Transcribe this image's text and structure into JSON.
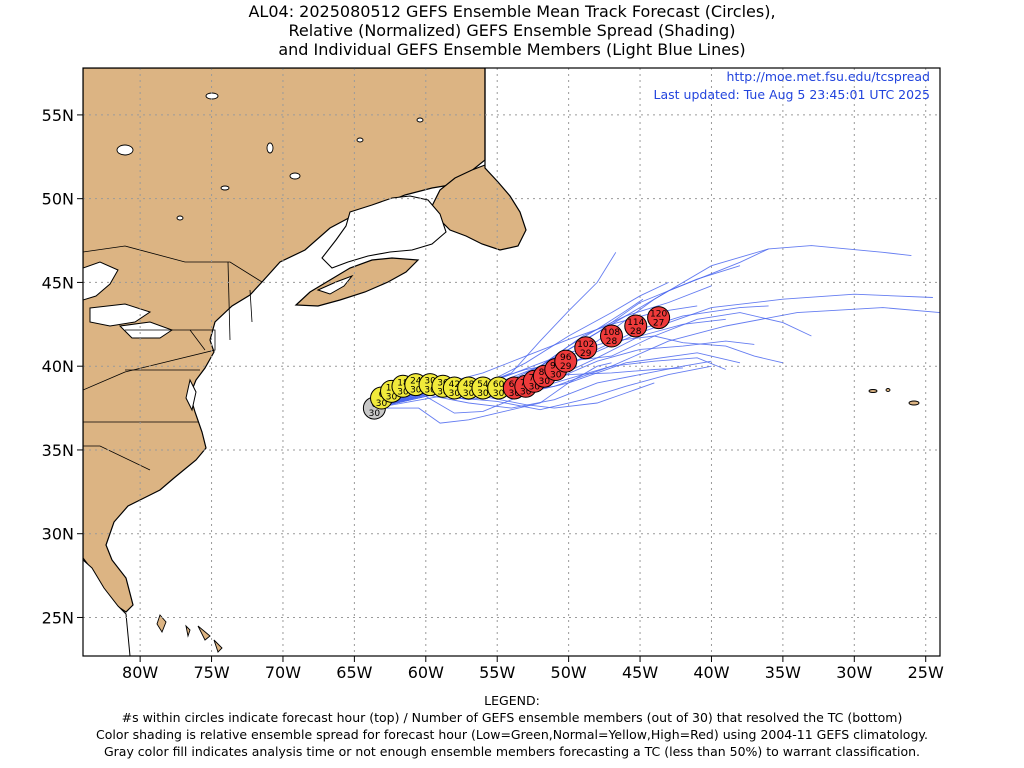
{
  "title": {
    "line1": "AL04: 2025080512 GEFS Ensemble Mean Track Forecast (Circles),",
    "line2": "Relative (Normalized) GEFS Ensemble Spread (Shading)",
    "line3": "and Individual GEFS Ensemble Members (Light Blue Lines)"
  },
  "source": {
    "url": "http://moe.met.fsu.edu/tcspread",
    "updated": "Last updated: Tue Aug 5 23:45:01 UTC 2025"
  },
  "axes": {
    "lon_range": [
      -84,
      -24
    ],
    "lat_range": [
      22.7,
      57.8
    ],
    "x_ticks": [
      {
        "lon": -80,
        "label": "80W"
      },
      {
        "lon": -75,
        "label": "75W"
      },
      {
        "lon": -70,
        "label": "70W"
      },
      {
        "lon": -65,
        "label": "65W"
      },
      {
        "lon": -60,
        "label": "60W"
      },
      {
        "lon": -55,
        "label": "55W"
      },
      {
        "lon": -50,
        "label": "50W"
      },
      {
        "lon": -45,
        "label": "45W"
      },
      {
        "lon": -40,
        "label": "40W"
      },
      {
        "lon": -35,
        "label": "35W"
      },
      {
        "lon": -30,
        "label": "30W"
      },
      {
        "lon": -25,
        "label": "25W"
      }
    ],
    "y_ticks": [
      {
        "lat": 25,
        "label": "25N"
      },
      {
        "lat": 30,
        "label": "30N"
      },
      {
        "lat": 35,
        "label": "35N"
      },
      {
        "lat": 40,
        "label": "40N"
      },
      {
        "lat": 45,
        "label": "45N"
      },
      {
        "lat": 50,
        "label": "50N"
      },
      {
        "lat": 55,
        "label": "55N"
      }
    ],
    "grid": true
  },
  "colors": {
    "land": "#dcb483",
    "coast": "#000000",
    "member_line": "#4a66ee",
    "gray": "#c8c8c8",
    "yellow": "#f1ea3b",
    "red": "#ee3a3a",
    "source_text": "#2244dd"
  },
  "track": [
    {
      "hour": "0",
      "members": "30",
      "lon": -63.6,
      "lat": 37.5,
      "spread": "gray"
    },
    {
      "hour": "6",
      "members": "30",
      "lon": -63.1,
      "lat": 38.1,
      "spread": "yellow"
    },
    {
      "hour": "12",
      "members": "30",
      "lon": -62.4,
      "lat": 38.5,
      "spread": "yellow"
    },
    {
      "hour": "18",
      "members": "30",
      "lon": -61.6,
      "lat": 38.8,
      "spread": "yellow"
    },
    {
      "hour": "24",
      "members": "30",
      "lon": -60.7,
      "lat": 38.9,
      "spread": "yellow"
    },
    {
      "hour": "30",
      "members": "30",
      "lon": -59.7,
      "lat": 38.9,
      "spread": "yellow"
    },
    {
      "hour": "36",
      "members": "30",
      "lon": -58.8,
      "lat": 38.8,
      "spread": "yellow"
    },
    {
      "hour": "42",
      "members": "30",
      "lon": -58.0,
      "lat": 38.7,
      "spread": "yellow"
    },
    {
      "hour": "48",
      "members": "30",
      "lon": -57.0,
      "lat": 38.7,
      "spread": "yellow"
    },
    {
      "hour": "54",
      "members": "30",
      "lon": -56.0,
      "lat": 38.7,
      "spread": "yellow"
    },
    {
      "hour": "60",
      "members": "30",
      "lon": -54.9,
      "lat": 38.7,
      "spread": "yellow"
    },
    {
      "hour": "66",
      "members": "30",
      "lon": -53.8,
      "lat": 38.7,
      "spread": "red"
    },
    {
      "hour": "72",
      "members": "30",
      "lon": -53.0,
      "lat": 38.8,
      "spread": "red"
    },
    {
      "hour": "78",
      "members": "30",
      "lon": -52.4,
      "lat": 39.1,
      "spread": "red"
    },
    {
      "hour": "84",
      "members": "30",
      "lon": -51.7,
      "lat": 39.4,
      "spread": "red"
    },
    {
      "hour": "90",
      "members": "30",
      "lon": -50.9,
      "lat": 39.8,
      "spread": "red"
    },
    {
      "hour": "96",
      "members": "29",
      "lon": -50.2,
      "lat": 40.3,
      "spread": "red"
    },
    {
      "hour": "102",
      "members": "29",
      "lon": -48.8,
      "lat": 41.1,
      "spread": "red"
    },
    {
      "hour": "108",
      "members": "28",
      "lon": -47.0,
      "lat": 41.8,
      "spread": "red"
    },
    {
      "hour": "114",
      "members": "28",
      "lon": -45.3,
      "lat": 42.4,
      "spread": "red"
    },
    {
      "hour": "120",
      "members": "27",
      "lon": -43.7,
      "lat": 42.9,
      "spread": "red"
    }
  ],
  "members": [
    [
      [
        -63.6,
        37.5
      ],
      [
        -60,
        38.4
      ],
      [
        -56,
        38.6
      ],
      [
        -52,
        39.6
      ],
      [
        -48,
        41.5
      ],
      [
        -44,
        44
      ],
      [
        -40,
        46
      ],
      [
        -36,
        47
      ],
      [
        -33,
        47.2
      ],
      [
        -28,
        46.8
      ],
      [
        -26,
        46.6
      ]
    ],
    [
      [
        -63.6,
        37.5
      ],
      [
        -60,
        38.8
      ],
      [
        -55,
        39.2
      ],
      [
        -51,
        40.5
      ],
      [
        -47,
        42.5
      ],
      [
        -43,
        44.5
      ],
      [
        -38,
        46.2
      ],
      [
        -36,
        47
      ]
    ],
    [
      [
        -63.6,
        37.5
      ],
      [
        -59,
        38.6
      ],
      [
        -55,
        38.8
      ],
      [
        -52,
        40
      ],
      [
        -48,
        42
      ],
      [
        -45,
        43.8
      ],
      [
        -41,
        45.2
      ],
      [
        -38,
        46
      ]
    ],
    [
      [
        -63.6,
        37.5
      ],
      [
        -60,
        38.5
      ],
      [
        -56,
        38.5
      ],
      [
        -53,
        39.2
      ],
      [
        -49,
        40.5
      ],
      [
        -45,
        42
      ],
      [
        -40,
        43.5
      ],
      [
        -35,
        44
      ],
      [
        -30,
        44.3
      ],
      [
        -24.5,
        44.1
      ]
    ],
    [
      [
        -63.6,
        37.5
      ],
      [
        -60,
        38.6
      ],
      [
        -55,
        38.3
      ],
      [
        -51,
        38.8
      ],
      [
        -47,
        40
      ],
      [
        -43,
        41.5
      ],
      [
        -39,
        42.4
      ],
      [
        -34,
        43.2
      ],
      [
        -28,
        43.5
      ],
      [
        -24,
        43.2
      ]
    ],
    [
      [
        -63.6,
        37.5
      ],
      [
        -59,
        38.4
      ],
      [
        -54,
        38.2
      ],
      [
        -50,
        39
      ],
      [
        -46,
        40.2
      ],
      [
        -41,
        40.8
      ],
      [
        -38,
        40.2
      ]
    ],
    [
      [
        -63.6,
        37.5
      ],
      [
        -60,
        38.3
      ],
      [
        -57,
        37.8
      ],
      [
        -54,
        37.5
      ],
      [
        -51,
        38
      ],
      [
        -48,
        39
      ],
      [
        -45,
        39.5
      ],
      [
        -42,
        40
      ],
      [
        -40,
        40.3
      ]
    ],
    [
      [
        -63.6,
        37.5
      ],
      [
        -59,
        38.2
      ],
      [
        -55,
        37.9
      ],
      [
        -52,
        37.4
      ],
      [
        -49,
        38
      ],
      [
        -46,
        38.8
      ],
      [
        -43,
        39.5
      ],
      [
        -40,
        40
      ]
    ],
    [
      [
        -63.6,
        37.5
      ],
      [
        -60,
        38.5
      ],
      [
        -56,
        38.2
      ],
      [
        -53,
        37.7
      ],
      [
        -51,
        37.5
      ],
      [
        -48,
        37.8
      ],
      [
        -46,
        38.4
      ],
      [
        -44,
        39
      ]
    ],
    [
      [
        -63.6,
        37.5
      ],
      [
        -60.5,
        37.5
      ],
      [
        -59,
        36.6
      ],
      [
        -57,
        36.8
      ],
      [
        -55,
        37.2
      ],
      [
        -52,
        37.8
      ],
      [
        -50,
        39
      ],
      [
        -48,
        40
      ],
      [
        -47,
        40.2
      ]
    ],
    [
      [
        -63.6,
        37.5
      ],
      [
        -60,
        38.5
      ],
      [
        -57,
        38.6
      ],
      [
        -54,
        39.6
      ],
      [
        -52,
        41.5
      ],
      [
        -50,
        43.3
      ],
      [
        -48,
        45
      ],
      [
        -46.7,
        46.8
      ]
    ],
    [
      [
        -63.6,
        37.5
      ],
      [
        -60,
        38.6
      ],
      [
        -56,
        38.9
      ],
      [
        -53,
        40.2
      ],
      [
        -50,
        41.8
      ],
      [
        -47,
        43.2
      ],
      [
        -45,
        44.2
      ],
      [
        -43,
        45
      ]
    ],
    [
      [
        -63.6,
        37.5
      ],
      [
        -59,
        38.5
      ],
      [
        -55,
        38.5
      ],
      [
        -52,
        39.5
      ],
      [
        -50,
        40.8
      ],
      [
        -47,
        41.5
      ],
      [
        -44,
        41.8
      ],
      [
        -42,
        41.4
      ],
      [
        -39,
        41.2
      ],
      [
        -37,
        40.6
      ],
      [
        -35,
        40.2
      ]
    ],
    [
      [
        -63.6,
        37.5
      ],
      [
        -59,
        38.4
      ],
      [
        -55,
        38.4
      ],
      [
        -51,
        39
      ],
      [
        -47,
        40
      ],
      [
        -44,
        40.3
      ],
      [
        -41,
        40.5
      ],
      [
        -39,
        39.8
      ]
    ],
    [
      [
        -63.6,
        37.5
      ],
      [
        -60,
        38.4
      ],
      [
        -57,
        38
      ],
      [
        -54,
        38.4
      ],
      [
        -51,
        39.2
      ],
      [
        -48,
        40.3
      ],
      [
        -45,
        41
      ],
      [
        -42,
        41.2
      ],
      [
        -39,
        41.5
      ],
      [
        -37,
        41.3
      ]
    ],
    [
      [
        -63.6,
        37.5
      ],
      [
        -59,
        38.6
      ],
      [
        -55,
        39
      ],
      [
        -52,
        40
      ],
      [
        -49,
        41.8
      ],
      [
        -46,
        43
      ],
      [
        -43,
        43.8
      ],
      [
        -40,
        44.8
      ]
    ],
    [
      [
        -63.6,
        37.5
      ],
      [
        -60,
        38.2
      ],
      [
        -58,
        37.2
      ],
      [
        -56,
        37.3
      ],
      [
        -54,
        38
      ],
      [
        -51,
        39.3
      ],
      [
        -48,
        40.5
      ],
      [
        -45,
        41.8
      ],
      [
        -42,
        42.5
      ],
      [
        -39,
        42.8
      ]
    ],
    [
      [
        -63.6,
        37.5
      ],
      [
        -59.5,
        38.8
      ],
      [
        -56,
        39.6
      ],
      [
        -53,
        40.6
      ],
      [
        -50,
        41.6
      ],
      [
        -47,
        42.5
      ],
      [
        -44,
        43.2
      ],
      [
        -41,
        43.6
      ]
    ],
    [
      [
        -63.6,
        37.5
      ],
      [
        -60,
        38.5
      ],
      [
        -56,
        38.6
      ],
      [
        -53,
        39
      ],
      [
        -50,
        39.5
      ],
      [
        -47,
        39.6
      ],
      [
        -44,
        39.8
      ],
      [
        -42,
        39.9
      ]
    ],
    [
      [
        -63.6,
        37.5
      ],
      [
        -60,
        38.5
      ],
      [
        -57,
        38.3
      ],
      [
        -54,
        38.8
      ],
      [
        -52,
        40
      ],
      [
        -50,
        41.2
      ],
      [
        -48,
        42.2
      ],
      [
        -46,
        43.3
      ],
      [
        -44.8,
        44
      ]
    ],
    [
      [
        -63.6,
        37.5
      ],
      [
        -60,
        38.7
      ],
      [
        -56,
        39
      ],
      [
        -53,
        39.8
      ],
      [
        -50,
        40.3
      ],
      [
        -47,
        40.6
      ],
      [
        -44,
        41.8
      ],
      [
        -41,
        42.8
      ],
      [
        -38,
        43.2
      ],
      [
        -35,
        42.6
      ],
      [
        -33,
        41.8
      ]
    ],
    [
      [
        -63.6,
        37.5
      ],
      [
        -59,
        38.5
      ],
      [
        -55,
        38.6
      ],
      [
        -51,
        39.5
      ],
      [
        -48,
        41
      ],
      [
        -45,
        42.2
      ],
      [
        -42,
        43
      ],
      [
        -38,
        43.5
      ],
      [
        -36,
        43.6
      ]
    ]
  ],
  "legend": {
    "heading": "LEGEND:",
    "line1": "#s within circles indicate forecast hour (top) / Number of GEFS ensemble members (out of 30) that resolved the TC (bottom)",
    "line2": "Color shading is relative ensemble spread for forecast hour (Low=Green,Normal=Yellow,High=Red) using 2004-11 GEFS climatology.",
    "line3": "Gray color fill indicates analysis time or not enough ensemble members forecasting a TC (less than 50%) to warrant classification."
  }
}
